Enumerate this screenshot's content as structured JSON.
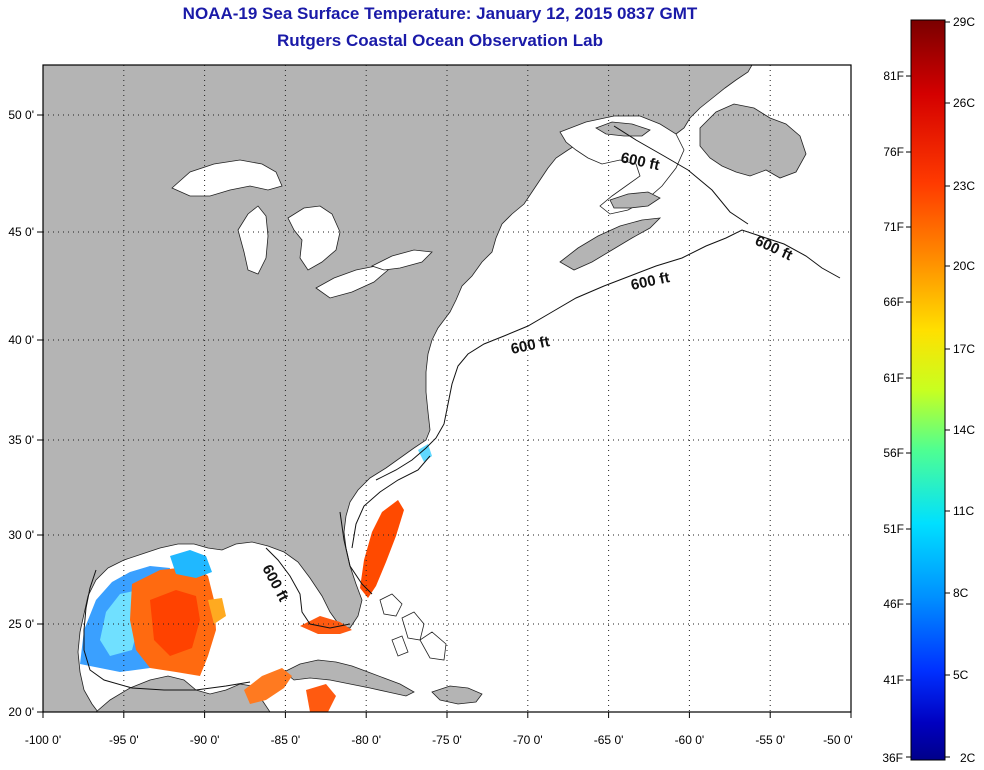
{
  "title": {
    "line1": "NOAA-19 Sea Surface Temperature:  January 12, 2015 0837 GMT",
    "line2": "Rutgers Coastal Ocean Observation Lab"
  },
  "map": {
    "lon_labels": [
      "-100 0'",
      "-95 0'",
      "-90 0'",
      "-85 0'",
      "-80 0'",
      "-75 0'",
      "-70 0'",
      "-65 0'",
      "-60 0'",
      "-55 0'",
      "-50 0'"
    ],
    "lat_labels": [
      "20 0'",
      "25 0'",
      "30 0'",
      "35 0'",
      "40 0'",
      "45 0'",
      "50 0'"
    ],
    "contour_labels": [
      "600 ft",
      "600 ft",
      "600 ft",
      "600 ft",
      "600 ft"
    ],
    "land_color": "#b4b4b4",
    "ocean_color": "#ffffff"
  },
  "colorbar": {
    "celsius_labels": [
      "29C",
      "26C",
      "23C",
      "20C",
      "17C",
      "14C",
      "11C",
      "8C",
      "5C",
      "2C"
    ],
    "fahrenheit_labels": [
      "81F",
      "76F",
      "71F",
      "66F",
      "61F",
      "56F",
      "51F",
      "46F",
      "41F",
      "36F"
    ],
    "colors": [
      "#7a0000",
      "#d40000",
      "#ff3a00",
      "#ff8a00",
      "#ffe000",
      "#c8ff20",
      "#50ff90",
      "#00e0ff",
      "#0090ff",
      "#0030ff",
      "#0000c0",
      "#00008a"
    ]
  }
}
